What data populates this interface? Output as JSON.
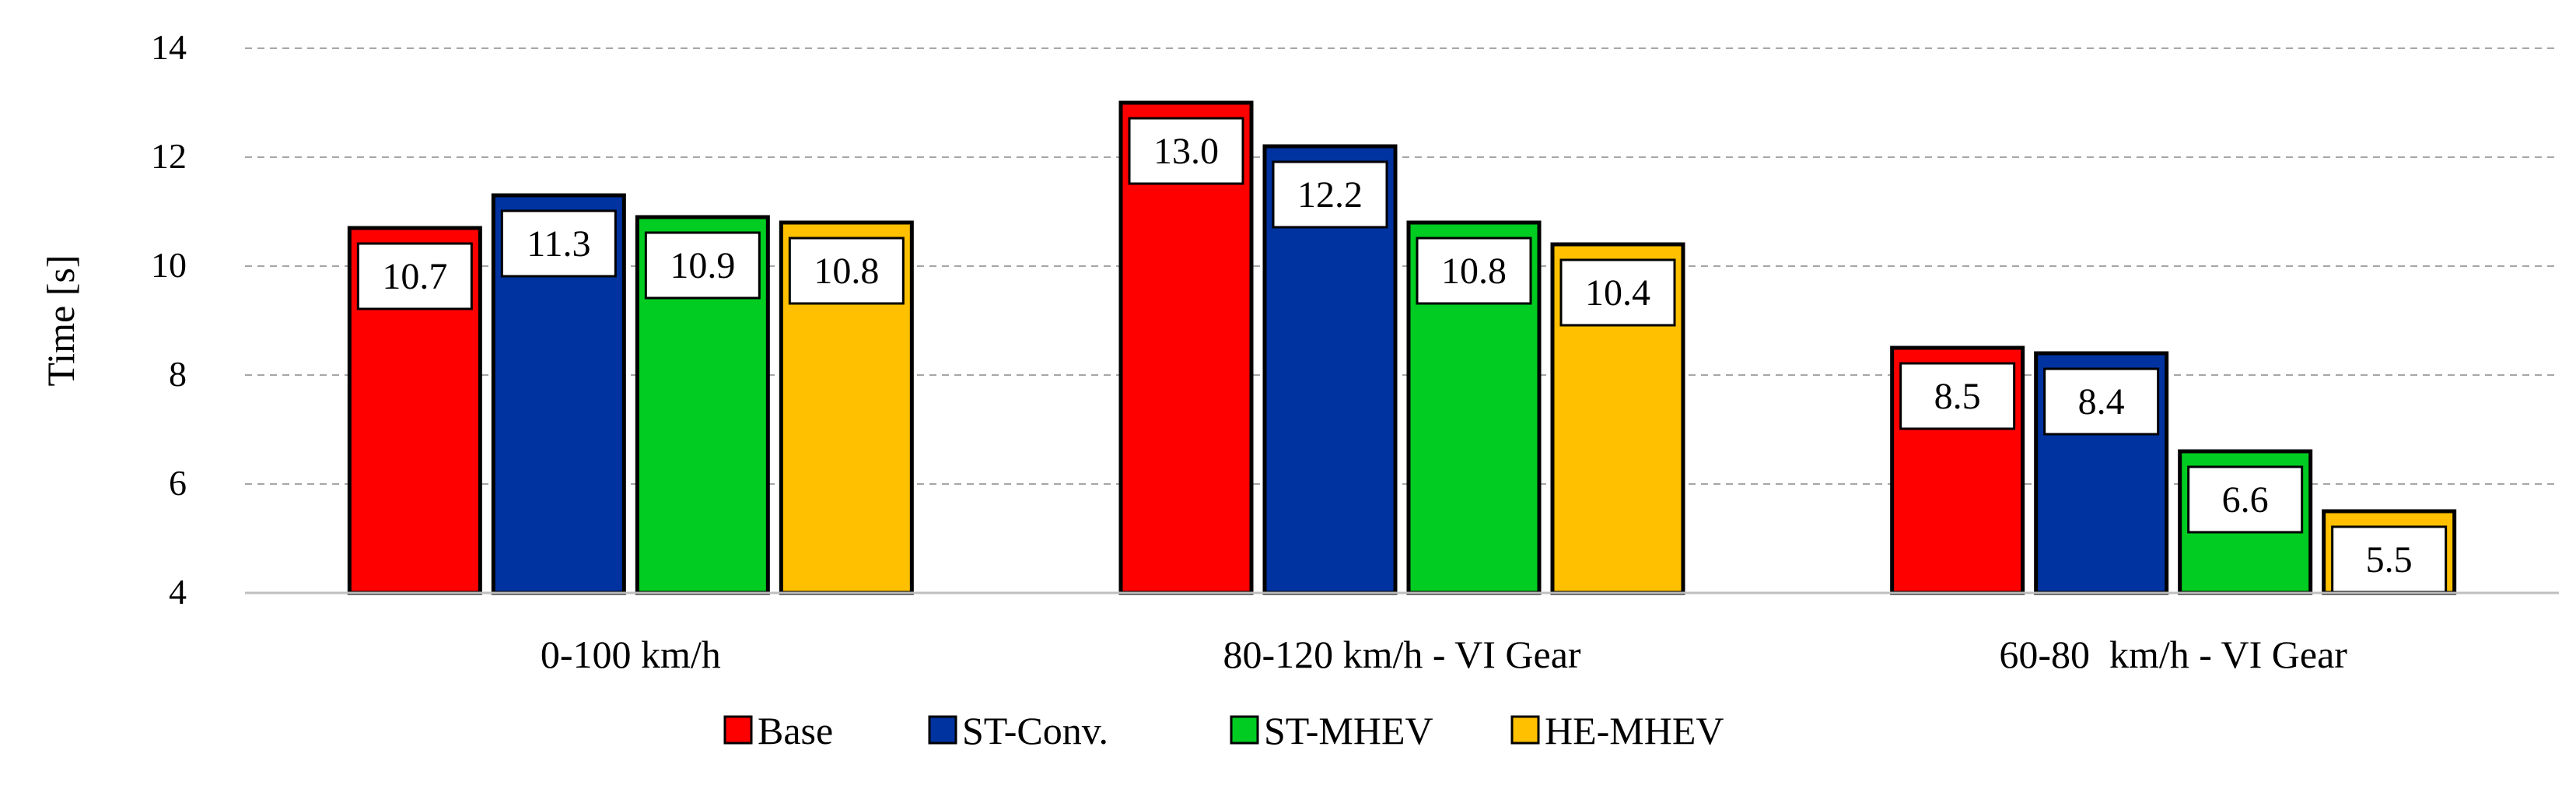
{
  "chart_data": {
    "type": "bar",
    "title": "",
    "xlabel": "",
    "ylabel": "Time [s]",
    "ylim": [
      4,
      14
    ],
    "yticks": [
      4,
      6,
      8,
      10,
      12,
      14
    ],
    "grid": true,
    "legend_position": "bottom",
    "categories": [
      "0-100 km/h",
      "80-120 km/h - VI Gear",
      "60-80  km/h - VI Gear"
    ],
    "series": [
      {
        "name": "Base",
        "color": "#ff0000",
        "values": [
          10.7,
          13.0,
          8.5
        ],
        "labels": [
          "10.7",
          "13.0",
          "8.5"
        ]
      },
      {
        "name": "ST-Conv.",
        "color": "#0033a0",
        "values": [
          11.3,
          12.2,
          8.4
        ],
        "labels": [
          "11.3",
          "12.2",
          "8.4"
        ]
      },
      {
        "name": "ST-MHEV",
        "color": "#00cc22",
        "values": [
          10.9,
          10.8,
          6.6
        ],
        "labels": [
          "10.9",
          "10.8",
          "6.6"
        ]
      },
      {
        "name": "HE-MHEV",
        "color": "#ffc000",
        "values": [
          10.8,
          10.4,
          5.5
        ],
        "labels": [
          "10.8",
          "10.4",
          "5.5"
        ]
      }
    ]
  }
}
